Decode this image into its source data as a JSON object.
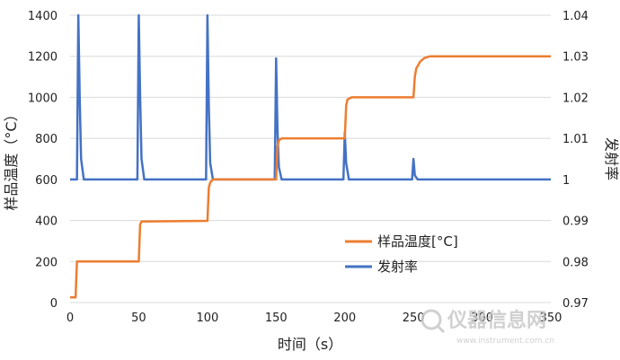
{
  "chart_data": {
    "type": "line",
    "title": "",
    "xlabel": "时间（s）",
    "ylabel_left": "样品温度（°C）",
    "ylabel_right": "发射率",
    "xlim": [
      0,
      350
    ],
    "ylim_left": [
      0,
      1400
    ],
    "ylim_right": [
      0.97,
      1.04
    ],
    "x_ticks": [
      "0",
      "50",
      "100",
      "150",
      "200",
      "250",
      "300",
      "350"
    ],
    "y_left_ticks": [
      "0",
      "200",
      "400",
      "600",
      "800",
      "1000",
      "1200",
      "1400"
    ],
    "y_right_ticks": [
      "0.97",
      "0.98",
      "0.99",
      "1",
      "1.01",
      "1.02",
      "1.03",
      "1.04"
    ],
    "grid": "horizontal",
    "legend_position": "bottom-center",
    "series": [
      {
        "name": "样品温度[°C]",
        "axis": "left",
        "color": "#ED7D31",
        "x": [
          0,
          4,
          5,
          50,
          51,
          52,
          100,
          101,
          102,
          104,
          150,
          151,
          152,
          154,
          200,
          201,
          202,
          205,
          250,
          251,
          252,
          255,
          258,
          262,
          300,
          350
        ],
        "y": [
          25,
          25,
          200,
          200,
          380,
          395,
          398,
          560,
          585,
          600,
          600,
          760,
          790,
          800,
          800,
          960,
          990,
          1000,
          1000,
          1100,
          1140,
          1175,
          1192,
          1200,
          1200,
          1200
        ]
      },
      {
        "name": "发射率",
        "axis": "right",
        "color": "#4472C4",
        "x": [
          0,
          1,
          5,
          6,
          7,
          8,
          10,
          49,
          50,
          51,
          52,
          54,
          99,
          100,
          101,
          102,
          104,
          149,
          150,
          151,
          152,
          154,
          199,
          200,
          201,
          203,
          249,
          250,
          251,
          253,
          350
        ],
        "y": [
          1,
          1,
          1.0,
          1.04,
          1.02,
          1.005,
          1.0,
          1.0,
          1.04,
          1.02,
          1.005,
          1.0,
          1.0,
          1.04,
          1.018,
          1.004,
          1.0,
          1.0,
          1.0295,
          1.012,
          1.003,
          1.0,
          1.0,
          1.0115,
          1.004,
          1.0,
          1.0,
          1.005,
          1.001,
          1.0,
          1.0
        ]
      }
    ]
  },
  "watermark": {
    "cn": "仪器信息网",
    "en": "www.instrument.com.cn"
  }
}
